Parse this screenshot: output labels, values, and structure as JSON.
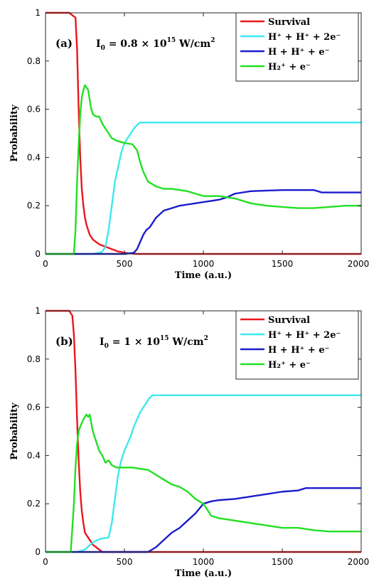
{
  "chart_data": [
    {
      "type": "line",
      "panel_label": "(a)",
      "intensity": {
        "base": "I",
        "sub": "0",
        "eq": " = 0.8 × 10",
        "exp": "15",
        "unit": " W/cm",
        "unit_exp": "2"
      },
      "xlabel": "Time (a.u.)",
      "ylabel": "Probability",
      "xlim": [
        0,
        2000
      ],
      "ylim": [
        0,
        1
      ],
      "xticks": [
        0,
        500,
        1000,
        1500,
        2000
      ],
      "yticks": [
        0,
        0.2,
        0.4,
        0.6,
        0.8,
        1
      ],
      "ytick_labels": [
        "0",
        "0.2",
        "0.4",
        "0.6",
        "0.8",
        "1"
      ],
      "legend_position": "top-right",
      "series": [
        {
          "name": "Survival",
          "color": "#e8171e",
          "x": [
            0,
            150,
            190,
            200,
            210,
            220,
            230,
            240,
            250,
            260,
            270,
            280,
            300,
            320,
            340,
            360,
            380,
            400,
            420,
            440,
            460,
            480,
            500,
            520,
            540,
            560,
            580,
            600,
            2000
          ],
          "y": [
            1,
            1,
            0.98,
            0.85,
            0.6,
            0.4,
            0.27,
            0.2,
            0.15,
            0.12,
            0.1,
            0.08,
            0.06,
            0.05,
            0.04,
            0.035,
            0.03,
            0.025,
            0.02,
            0.015,
            0.01,
            0.008,
            0.005,
            0.003,
            0.002,
            0.001,
            0,
            0,
            0
          ]
        },
        {
          "name": "H⁺ + H⁺ + 2e⁻",
          "color": "#3ee8f0",
          "x": [
            0,
            300,
            340,
            360,
            380,
            400,
            420,
            440,
            460,
            480,
            500,
            520,
            540,
            560,
            580,
            600,
            700,
            800,
            1000,
            1500,
            2000
          ],
          "y": [
            0,
            0,
            0.005,
            0.01,
            0.03,
            0.1,
            0.2,
            0.3,
            0.36,
            0.42,
            0.46,
            0.48,
            0.5,
            0.52,
            0.535,
            0.545,
            0.545,
            0.545,
            0.545,
            0.545,
            0.545
          ]
        },
        {
          "name": "H + H⁺ + e⁻",
          "color": "#1c1ccc",
          "x": [
            0,
            500,
            560,
            580,
            600,
            620,
            640,
            660,
            680,
            700,
            750,
            800,
            850,
            900,
            950,
            1000,
            1050,
            1100,
            1150,
            1200,
            1300,
            1500,
            1700,
            1750,
            2000
          ],
          "y": [
            0,
            0,
            0.005,
            0.02,
            0.05,
            0.08,
            0.1,
            0.11,
            0.13,
            0.15,
            0.18,
            0.19,
            0.2,
            0.205,
            0.21,
            0.215,
            0.22,
            0.225,
            0.235,
            0.25,
            0.26,
            0.265,
            0.265,
            0.255,
            0.255
          ]
        },
        {
          "name": "H₂⁺ + e⁻",
          "color": "#22e022",
          "x": [
            0,
            180,
            190,
            200,
            210,
            220,
            230,
            240,
            250,
            260,
            270,
            280,
            290,
            300,
            320,
            340,
            360,
            380,
            400,
            420,
            450,
            500,
            550,
            580,
            600,
            620,
            650,
            700,
            750,
            800,
            900,
            1000,
            1100,
            1200,
            1300,
            1400,
            1500,
            1600,
            1700,
            1800,
            1900,
            2000
          ],
          "y": [
            0,
            0,
            0.1,
            0.3,
            0.45,
            0.58,
            0.65,
            0.68,
            0.7,
            0.69,
            0.68,
            0.64,
            0.6,
            0.58,
            0.57,
            0.57,
            0.54,
            0.52,
            0.5,
            0.48,
            0.47,
            0.46,
            0.455,
            0.43,
            0.38,
            0.34,
            0.3,
            0.28,
            0.27,
            0.27,
            0.26,
            0.24,
            0.24,
            0.23,
            0.21,
            0.2,
            0.195,
            0.19,
            0.19,
            0.195,
            0.2,
            0.2
          ]
        }
      ]
    },
    {
      "type": "line",
      "panel_label": "(b)",
      "intensity": {
        "base": "I",
        "sub": "0",
        "eq": " = 1 × 10",
        "exp": "15",
        "unit": " W/cm",
        "unit_exp": "2"
      },
      "xlabel": "Time (a.u.)",
      "ylabel": "Probability",
      "xlim": [
        0,
        2000
      ],
      "ylim": [
        0,
        1
      ],
      "xticks": [
        0,
        500,
        1000,
        1500,
        2000
      ],
      "yticks": [
        0,
        0.2,
        0.4,
        0.6,
        0.8,
        1
      ],
      "ytick_labels": [
        "0",
        "0.2",
        "0.4",
        "0.6",
        "0.8",
        "1"
      ],
      "legend_position": "top-right",
      "series": [
        {
          "name": "Survival",
          "color": "#e8171e",
          "x": [
            0,
            150,
            170,
            180,
            190,
            200,
            210,
            220,
            230,
            240,
            250,
            260,
            270,
            280,
            290,
            300,
            320,
            340,
            360,
            2000
          ],
          "y": [
            1,
            1,
            0.98,
            0.9,
            0.75,
            0.55,
            0.38,
            0.25,
            0.17,
            0.12,
            0.08,
            0.07,
            0.06,
            0.05,
            0.04,
            0.03,
            0.02,
            0.01,
            0,
            0
          ]
        },
        {
          "name": "H⁺ + H⁺ + 2e⁻",
          "color": "#3ee8f0",
          "x": [
            0,
            200,
            250,
            300,
            350,
            400,
            420,
            440,
            460,
            480,
            500,
            520,
            540,
            560,
            580,
            600,
            620,
            640,
            660,
            680,
            700,
            1000,
            1500,
            2000
          ],
          "y": [
            0,
            0,
            0.01,
            0.04,
            0.055,
            0.06,
            0.12,
            0.22,
            0.32,
            0.38,
            0.42,
            0.45,
            0.48,
            0.52,
            0.55,
            0.58,
            0.6,
            0.62,
            0.64,
            0.65,
            0.65,
            0.65,
            0.65,
            0.65
          ]
        },
        {
          "name": "H + H⁺ + e⁻",
          "color": "#1c1ccc",
          "x": [
            0,
            650,
            700,
            750,
            800,
            850,
            900,
            950,
            1000,
            1050,
            1100,
            1200,
            1300,
            1400,
            1500,
            1600,
            1650,
            2000
          ],
          "y": [
            0,
            0,
            0.02,
            0.05,
            0.08,
            0.1,
            0.13,
            0.16,
            0.2,
            0.21,
            0.215,
            0.22,
            0.23,
            0.24,
            0.25,
            0.255,
            0.265,
            0.265
          ]
        },
        {
          "name": "H₂⁺ + e⁻",
          "color": "#22e022",
          "x": [
            0,
            160,
            180,
            190,
            200,
            210,
            220,
            240,
            260,
            270,
            280,
            300,
            320,
            340,
            360,
            380,
            400,
            420,
            450,
            500,
            550,
            600,
            650,
            700,
            750,
            800,
            850,
            900,
            950,
            1000,
            1050,
            1100,
            1200,
            1300,
            1400,
            1500,
            1600,
            1700,
            1800,
            1900,
            2000
          ],
          "y": [
            0,
            0,
            0.2,
            0.35,
            0.45,
            0.5,
            0.52,
            0.55,
            0.57,
            0.56,
            0.57,
            0.5,
            0.46,
            0.42,
            0.4,
            0.37,
            0.38,
            0.36,
            0.35,
            0.35,
            0.35,
            0.345,
            0.34,
            0.32,
            0.3,
            0.28,
            0.27,
            0.25,
            0.22,
            0.2,
            0.15,
            0.14,
            0.13,
            0.12,
            0.11,
            0.1,
            0.1,
            0.09,
            0.085,
            0.085,
            0.085
          ]
        }
      ]
    }
  ]
}
